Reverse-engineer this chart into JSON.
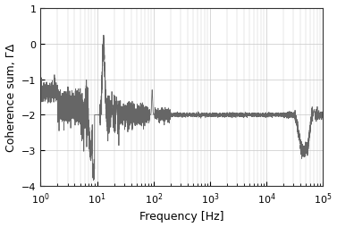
{
  "xlabel": "Frequency [Hz]",
  "ylabel": "Coherence sum, ΓΔ",
  "xlim": [
    1,
    100000
  ],
  "ylim": [
    -4,
    1
  ],
  "yticks": [
    -4,
    -3,
    -2,
    -1,
    0,
    1
  ],
  "line_color": "#666666",
  "line_width": 0.6,
  "background_color": "#ffffff",
  "grid_color": "#c8c8c8",
  "figsize": [
    3.77,
    2.55
  ],
  "dpi": 100
}
